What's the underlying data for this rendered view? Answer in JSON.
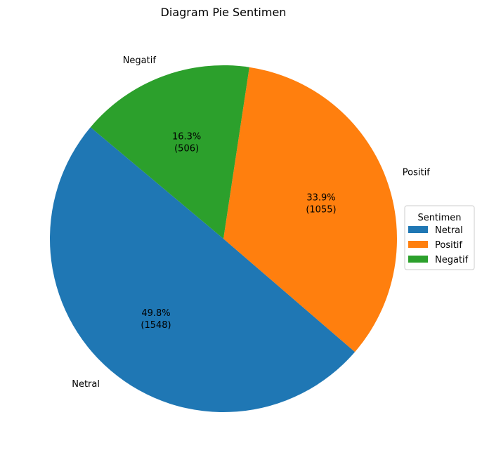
{
  "chart_data": {
    "type": "pie",
    "title": "Diagram Pie Sentimen",
    "categories": [
      "Netral",
      "Positif",
      "Negatif"
    ],
    "values": [
      1548,
      1055,
      506
    ],
    "percent_labels": [
      "49.8%",
      "33.9%",
      "16.3%"
    ],
    "count_labels": [
      "(1548)",
      "(1055)",
      "(506)"
    ],
    "colors": [
      "#1f77b4",
      "#ff7f0e",
      "#2ca02c"
    ],
    "start_angle_deg": 140,
    "direction": "counterclockwise",
    "legend": {
      "title": "Sentimen",
      "entries": [
        "Netral",
        "Positif",
        "Negatif"
      ],
      "placement": "center-right"
    }
  }
}
